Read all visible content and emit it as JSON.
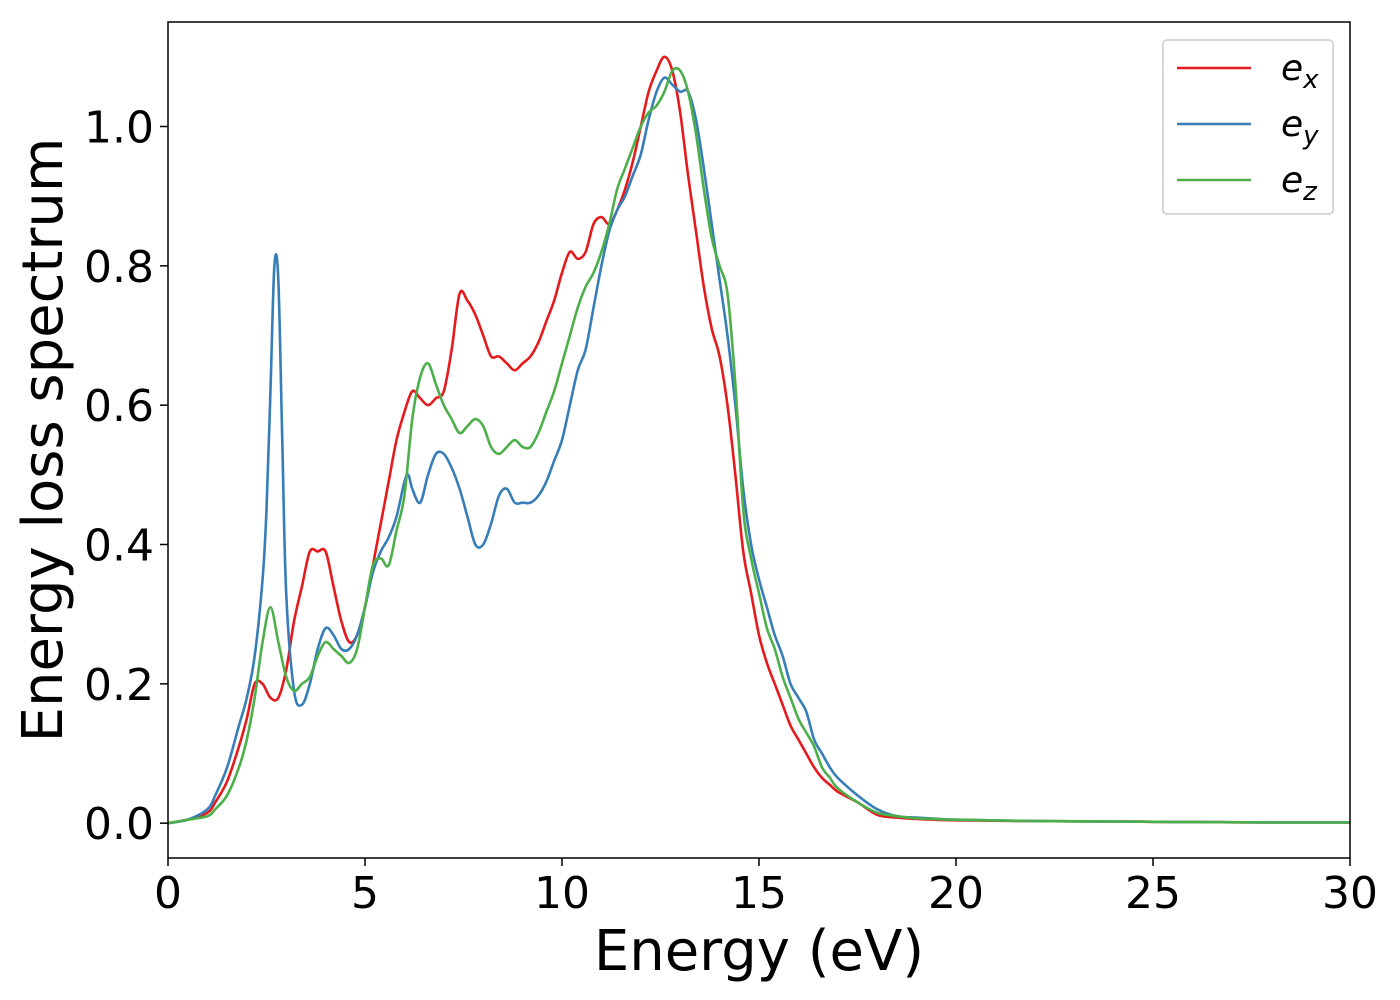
{
  "chart_data": {
    "type": "line",
    "xlabel": "Energy (eV)",
    "ylabel": "Energy loss spectrum",
    "xlim": [
      0,
      30
    ],
    "ylim": [
      -0.05,
      1.15
    ],
    "xticks": [
      0,
      5,
      10,
      15,
      20,
      25,
      30
    ],
    "xtick_labels": [
      "0",
      "5",
      "10",
      "15",
      "20",
      "25",
      "30"
    ],
    "yticks": [
      0.0,
      0.2,
      0.4,
      0.6,
      0.8,
      1.0
    ],
    "ytick_labels": [
      "0.0",
      "0.2",
      "0.4",
      "0.6",
      "0.8",
      "1.0"
    ],
    "grid": false,
    "legend_position": "top-right",
    "series": [
      {
        "name": "e",
        "subscript": "x",
        "color": "#e41a1c",
        "x": [
          0,
          0.5,
          1.0,
          1.2,
          1.5,
          1.8,
          2.0,
          2.2,
          2.4,
          2.6,
          2.8,
          3.0,
          3.2,
          3.4,
          3.6,
          3.8,
          4.0,
          4.2,
          4.4,
          4.6,
          4.8,
          5.0,
          5.2,
          5.4,
          5.6,
          5.8,
          6.0,
          6.2,
          6.4,
          6.6,
          6.8,
          7.0,
          7.2,
          7.4,
          7.6,
          7.8,
          8.0,
          8.2,
          8.4,
          8.6,
          8.8,
          9.0,
          9.2,
          9.4,
          9.6,
          9.8,
          10.0,
          10.2,
          10.4,
          10.6,
          10.8,
          11.0,
          11.2,
          11.4,
          11.6,
          11.8,
          12.0,
          12.2,
          12.4,
          12.6,
          12.8,
          13.0,
          13.2,
          13.4,
          13.6,
          13.8,
          14.0,
          14.2,
          14.4,
          14.6,
          14.8,
          15.0,
          15.2,
          15.4,
          15.6,
          15.8,
          16.0,
          16.2,
          16.4,
          16.6,
          16.8,
          17.0,
          17.5,
          18.0,
          18.5,
          19.0,
          20.0,
          22.0,
          25.0,
          28.0,
          30.0
        ],
        "y": [
          0.0,
          0.005,
          0.015,
          0.03,
          0.06,
          0.11,
          0.15,
          0.2,
          0.2,
          0.18,
          0.18,
          0.22,
          0.29,
          0.34,
          0.39,
          0.39,
          0.39,
          0.34,
          0.29,
          0.26,
          0.27,
          0.31,
          0.37,
          0.43,
          0.49,
          0.55,
          0.59,
          0.62,
          0.61,
          0.6,
          0.61,
          0.62,
          0.68,
          0.76,
          0.75,
          0.73,
          0.7,
          0.67,
          0.67,
          0.66,
          0.65,
          0.66,
          0.67,
          0.69,
          0.72,
          0.75,
          0.79,
          0.82,
          0.81,
          0.82,
          0.86,
          0.87,
          0.86,
          0.88,
          0.91,
          0.95,
          1.0,
          1.05,
          1.08,
          1.1,
          1.08,
          1.02,
          0.93,
          0.85,
          0.77,
          0.71,
          0.67,
          0.6,
          0.5,
          0.39,
          0.33,
          0.27,
          0.23,
          0.2,
          0.17,
          0.14,
          0.12,
          0.1,
          0.08,
          0.065,
          0.055,
          0.045,
          0.03,
          0.012,
          0.008,
          0.006,
          0.004,
          0.003,
          0.002,
          0.001,
          0.001
        ]
      },
      {
        "name": "e",
        "subscript": "y",
        "color": "#377eb8",
        "x": [
          0,
          0.5,
          1.0,
          1.2,
          1.5,
          1.8,
          2.0,
          2.2,
          2.4,
          2.5,
          2.6,
          2.7,
          2.8,
          2.9,
          3.0,
          3.2,
          3.4,
          3.6,
          3.8,
          4.0,
          4.2,
          4.4,
          4.6,
          4.8,
          5.0,
          5.2,
          5.4,
          5.6,
          5.8,
          6.0,
          6.1,
          6.2,
          6.4,
          6.6,
          6.8,
          7.0,
          7.2,
          7.4,
          7.6,
          7.8,
          8.0,
          8.2,
          8.4,
          8.6,
          8.8,
          9.0,
          9.2,
          9.4,
          9.6,
          9.8,
          10.0,
          10.2,
          10.4,
          10.6,
          10.8,
          11.0,
          11.2,
          11.4,
          11.6,
          11.8,
          12.0,
          12.2,
          12.4,
          12.6,
          12.8,
          13.0,
          13.2,
          13.4,
          13.6,
          13.8,
          14.0,
          14.2,
          14.4,
          14.6,
          14.8,
          15.0,
          15.2,
          15.4,
          15.6,
          15.8,
          16.0,
          16.2,
          16.4,
          16.6,
          16.8,
          17.0,
          17.5,
          18.0,
          18.5,
          19.0,
          20.0,
          22.0,
          25.0,
          28.0,
          30.0
        ],
        "y": [
          0.0,
          0.005,
          0.02,
          0.04,
          0.08,
          0.14,
          0.18,
          0.24,
          0.35,
          0.45,
          0.62,
          0.8,
          0.78,
          0.55,
          0.33,
          0.19,
          0.17,
          0.2,
          0.25,
          0.28,
          0.27,
          0.25,
          0.25,
          0.27,
          0.31,
          0.36,
          0.39,
          0.41,
          0.44,
          0.49,
          0.5,
          0.48,
          0.46,
          0.5,
          0.53,
          0.53,
          0.51,
          0.48,
          0.44,
          0.4,
          0.4,
          0.43,
          0.47,
          0.48,
          0.46,
          0.46,
          0.46,
          0.47,
          0.49,
          0.52,
          0.55,
          0.6,
          0.65,
          0.68,
          0.74,
          0.8,
          0.85,
          0.88,
          0.9,
          0.93,
          0.96,
          1.01,
          1.05,
          1.07,
          1.06,
          1.05,
          1.05,
          1.01,
          0.94,
          0.86,
          0.78,
          0.7,
          0.6,
          0.48,
          0.4,
          0.35,
          0.31,
          0.27,
          0.24,
          0.2,
          0.18,
          0.16,
          0.12,
          0.1,
          0.08,
          0.065,
          0.04,
          0.02,
          0.01,
          0.008,
          0.005,
          0.003,
          0.002,
          0.001,
          0.001
        ]
      },
      {
        "name": "e",
        "subscript": "z",
        "color": "#4daf4a",
        "x": [
          0,
          0.5,
          1.0,
          1.2,
          1.5,
          1.8,
          2.0,
          2.2,
          2.4,
          2.6,
          2.8,
          3.0,
          3.2,
          3.4,
          3.6,
          3.8,
          4.0,
          4.2,
          4.4,
          4.6,
          4.8,
          5.0,
          5.2,
          5.4,
          5.6,
          5.8,
          6.0,
          6.2,
          6.4,
          6.6,
          6.8,
          7.0,
          7.2,
          7.4,
          7.6,
          7.8,
          8.0,
          8.2,
          8.4,
          8.6,
          8.8,
          9.0,
          9.2,
          9.4,
          9.6,
          9.8,
          10.0,
          10.2,
          10.4,
          10.6,
          10.8,
          11.0,
          11.2,
          11.4,
          11.6,
          11.8,
          12.0,
          12.2,
          12.4,
          12.6,
          12.8,
          13.0,
          13.2,
          13.4,
          13.6,
          13.8,
          14.0,
          14.2,
          14.4,
          14.6,
          14.8,
          15.0,
          15.2,
          15.4,
          15.6,
          15.8,
          16.0,
          16.2,
          16.4,
          16.6,
          16.8,
          17.0,
          17.5,
          18.0,
          18.5,
          19.0,
          20.0,
          22.0,
          25.0,
          28.0,
          30.0
        ],
        "y": [
          0.0,
          0.005,
          0.01,
          0.02,
          0.04,
          0.08,
          0.12,
          0.18,
          0.26,
          0.31,
          0.26,
          0.21,
          0.19,
          0.2,
          0.21,
          0.24,
          0.26,
          0.25,
          0.24,
          0.23,
          0.25,
          0.31,
          0.37,
          0.38,
          0.37,
          0.42,
          0.47,
          0.58,
          0.64,
          0.66,
          0.63,
          0.6,
          0.58,
          0.56,
          0.57,
          0.58,
          0.57,
          0.54,
          0.53,
          0.54,
          0.55,
          0.54,
          0.54,
          0.56,
          0.59,
          0.62,
          0.66,
          0.7,
          0.74,
          0.77,
          0.79,
          0.82,
          0.86,
          0.91,
          0.94,
          0.97,
          1.0,
          1.02,
          1.03,
          1.05,
          1.08,
          1.08,
          1.05,
          0.99,
          0.91,
          0.84,
          0.8,
          0.76,
          0.63,
          0.45,
          0.38,
          0.33,
          0.28,
          0.25,
          0.21,
          0.18,
          0.15,
          0.13,
          0.11,
          0.08,
          0.065,
          0.05,
          0.03,
          0.015,
          0.01,
          0.007,
          0.005,
          0.003,
          0.002,
          0.001,
          0.001
        ]
      }
    ]
  }
}
